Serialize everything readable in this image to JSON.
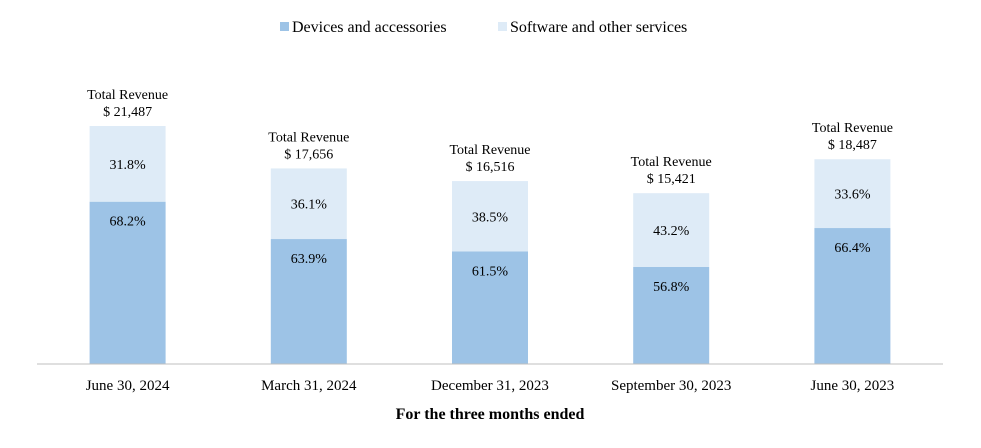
{
  "chart_data": {
    "type": "bar",
    "stacked": true,
    "normalized": true,
    "title": "",
    "xlabel": "For the three months ended",
    "ylabel": "",
    "total_label_prefix": "Total Revenue",
    "categories": [
      "June 30, 2024",
      "March 31, 2024",
      "December 31, 2023",
      "September 30, 2023",
      "June 30, 2023"
    ],
    "totals": [
      "$ 21,487",
      "$ 17,656",
      "$ 16,516",
      "$ 15,421",
      "$ 18,487"
    ],
    "total_values": [
      21487,
      17656,
      16516,
      15421,
      18487
    ],
    "series": [
      {
        "name": "Devices and accessories",
        "color": "#9dc3e6",
        "values": [
          68.2,
          63.9,
          61.5,
          56.8,
          66.4
        ],
        "labels": [
          "68.2%",
          "63.9%",
          "61.5%",
          "56.8%",
          "66.4%"
        ]
      },
      {
        "name": "Software and other services",
        "color": "#deebf7",
        "values": [
          31.8,
          36.1,
          38.5,
          43.2,
          33.6
        ],
        "labels": [
          "31.8%",
          "36.1%",
          "38.5%",
          "43.2%",
          "33.6%"
        ]
      }
    ],
    "legend": "top-center",
    "grid": false
  }
}
